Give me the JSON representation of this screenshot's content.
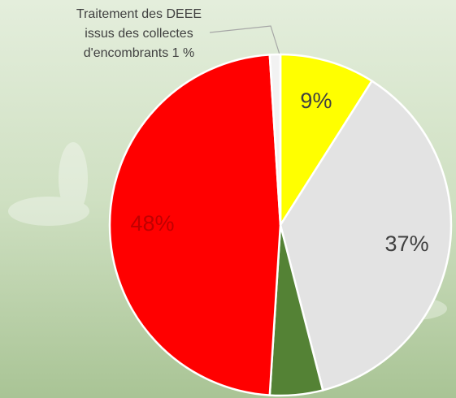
{
  "chart_data": {
    "type": "pie",
    "values": [
      9,
      37,
      5,
      48,
      1
    ],
    "value_labels": [
      "9%",
      "37%",
      null,
      "48%",
      "Traitement des DEEE issus des collectes d'encombrants 1 %"
    ],
    "colors": [
      "#ffff00",
      "#e3e3e3",
      "#548235",
      "#ff0000",
      "#f2f2f2"
    ],
    "label_colors": [
      "#404040",
      "#404040",
      "#404040",
      "#c00000",
      "#404040"
    ],
    "start_angle": 0,
    "direction": "clockwise"
  }
}
